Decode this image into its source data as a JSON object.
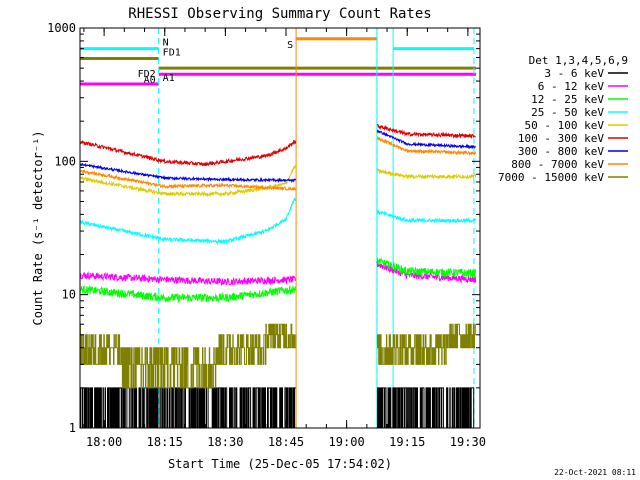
{
  "chart_data": {
    "type": "line",
    "title": "RHESSI Observing Summary Count Rates",
    "xlabel": "Start Time (25-Dec-05 17:54:02)",
    "ylabel": "Count Rate (s⁻¹ detector⁻¹)",
    "yscale": "log",
    "ylim": [
      1,
      1000
    ],
    "y_ticks": [
      {
        "v": 1,
        "label": "1"
      },
      {
        "v": 10,
        "label": "10"
      },
      {
        "v": 100,
        "label": "100"
      },
      {
        "v": 1000,
        "label": "1000"
      }
    ],
    "xlim": [
      "17:54:02",
      "19:33:00"
    ],
    "x_ticks": [
      {
        "t": "18:00",
        "label": "18:00"
      },
      {
        "t": "18:15",
        "label": "18:15"
      },
      {
        "t": "18:30",
        "label": "18:30"
      },
      {
        "t": "18:45",
        "label": "18:45"
      },
      {
        "t": "19:00",
        "label": "19:00"
      },
      {
        "t": "19:15",
        "label": "19:15"
      },
      {
        "t": "19:30",
        "label": "19:30"
      }
    ],
    "gaps": [
      {
        "start": "18:47:30",
        "end": "19:07:30"
      }
    ],
    "legend": {
      "position": "right",
      "header": "Det 1,3,4,5,6,9",
      "entries": [
        {
          "label": "3 - 6 keV",
          "color": "#000000"
        },
        {
          "label": "6 - 12 keV",
          "color": "#ff00ff"
        },
        {
          "label": "12 - 25 keV",
          "color": "#00ff00"
        },
        {
          "label": "25 - 50 keV",
          "color": "#00ffff"
        },
        {
          "label": "50 - 100 keV",
          "color": "#ddcc00"
        },
        {
          "label": "100 - 300 keV",
          "color": "#dd0000"
        },
        {
          "label": "300 - 800 keV",
          "color": "#0000ee"
        },
        {
          "label": "800 - 7000 keV",
          "color": "#ff8800"
        },
        {
          "label": "7000 - 15000 keV",
          "color": "#808000"
        }
      ]
    },
    "series": [
      {
        "name": "3 - 6 keV",
        "color": "#000000",
        "noise": "binary",
        "points": [
          [
            "17:54:02",
            1.5
          ],
          [
            "18:40:00",
            1.5
          ],
          [
            "18:47:00",
            1.5
          ],
          [
            "19:07:30",
            1.5
          ],
          [
            "19:32:00",
            1.5
          ]
        ]
      },
      {
        "name": "6 - 12 keV",
        "color": "#ff00ff",
        "noise": 0.06,
        "points": [
          [
            "17:54:02",
            14
          ],
          [
            "18:15:00",
            13
          ],
          [
            "18:30:00",
            12.5
          ],
          [
            "18:47:00",
            13
          ],
          [
            "19:07:30",
            17
          ],
          [
            "19:15:00",
            14
          ],
          [
            "19:32:00",
            13
          ]
        ]
      },
      {
        "name": "12 - 25 keV",
        "color": "#00ff00",
        "noise": 0.07,
        "points": [
          [
            "17:54:02",
            11
          ],
          [
            "18:15:00",
            9.5
          ],
          [
            "18:30:00",
            9.5
          ],
          [
            "18:47:00",
            11
          ],
          [
            "19:07:30",
            18
          ],
          [
            "19:15:00",
            15
          ],
          [
            "19:32:00",
            14.5
          ]
        ]
      },
      {
        "name": "25 - 50 keV",
        "color": "#00ffff",
        "noise": 0.03,
        "points": [
          [
            "17:54:02",
            35
          ],
          [
            "18:15:00",
            26
          ],
          [
            "18:30:00",
            25
          ],
          [
            "18:40:00",
            30
          ],
          [
            "18:45:00",
            37
          ],
          [
            "18:47:00",
            52
          ],
          [
            "19:07:30",
            42
          ],
          [
            "19:15:00",
            36
          ],
          [
            "19:32:00",
            36
          ]
        ]
      },
      {
        "name": "50 - 100 keV",
        "color": "#ddcc00",
        "noise": 0.03,
        "points": [
          [
            "17:54:02",
            75
          ],
          [
            "18:15:00",
            57
          ],
          [
            "18:30:00",
            57
          ],
          [
            "18:40:00",
            63
          ],
          [
            "18:45:00",
            68
          ],
          [
            "18:47:00",
            90
          ],
          [
            "19:07:30",
            85
          ],
          [
            "19:15:00",
            77
          ],
          [
            "19:32:00",
            77
          ]
        ]
      },
      {
        "name": "100 - 300 keV",
        "color": "#dd0000",
        "noise": 0.03,
        "points": [
          [
            "17:54:02",
            140
          ],
          [
            "18:15:00",
            100
          ],
          [
            "18:25:00",
            95
          ],
          [
            "18:40:00",
            110
          ],
          [
            "18:45:00",
            125
          ],
          [
            "18:47:00",
            140
          ],
          [
            "19:07:30",
            185
          ],
          [
            "19:15:00",
            160
          ],
          [
            "19:32:00",
            155
          ]
        ]
      },
      {
        "name": "300 - 800 keV",
        "color": "#0000ee",
        "noise": 0.02,
        "points": [
          [
            "17:54:02",
            95
          ],
          [
            "18:15:00",
            75
          ],
          [
            "18:30:00",
            73
          ],
          [
            "18:47:00",
            72
          ],
          [
            "19:07:30",
            170
          ],
          [
            "19:15:00",
            135
          ],
          [
            "19:32:00",
            128
          ]
        ]
      },
      {
        "name": "800 - 7000 keV",
        "color": "#ff8800",
        "noise": 0.025,
        "points": [
          [
            "17:54:02",
            85
          ],
          [
            "18:15:00",
            65
          ],
          [
            "18:30:00",
            66
          ],
          [
            "18:47:00",
            62
          ],
          [
            "19:07:30",
            150
          ],
          [
            "19:15:00",
            120
          ],
          [
            "19:32:00",
            115
          ]
        ]
      },
      {
        "name": "7000 - 15000 keV",
        "color": "#808000",
        "noise": "step",
        "points": [
          [
            "17:54:02",
            4.5
          ],
          [
            "18:10:00",
            3
          ],
          [
            "18:20:00",
            3
          ],
          [
            "18:40:00",
            4.5
          ],
          [
            "18:47:00",
            4.5
          ],
          [
            "19:07:30",
            3.5
          ],
          [
            "19:32:00",
            5
          ]
        ]
      }
    ],
    "vertical_lines": [
      {
        "t": "17:54:02",
        "color": "#00ffff",
        "style": "solid"
      },
      {
        "t": "18:13:30",
        "color": "#00ffff",
        "style": "dashed"
      },
      {
        "t": "18:47:30",
        "color": "#ff8800",
        "style": "solid"
      },
      {
        "t": "19:07:30",
        "color": "#ff8800",
        "style": "dashed"
      },
      {
        "t": "19:07:30",
        "color": "#00ffff",
        "style": "solid"
      },
      {
        "t": "19:11:30",
        "color": "#00ffff",
        "style": "solid"
      },
      {
        "t": "19:31:30",
        "color": "#00ffff",
        "style": "dashed"
      }
    ],
    "flag_bars": [
      {
        "label": "N",
        "color": "#00ffff",
        "label_side": "right",
        "segments": [
          [
            "17:54:02",
            "18:13:30",
            700
          ],
          [
            "19:11:30",
            "19:31:30",
            700
          ]
        ]
      },
      {
        "label": "FD1",
        "color": "#808000",
        "label_side": "right",
        "segments": [
          [
            "17:54:02",
            "18:13:30",
            590
          ]
        ]
      },
      {
        "label": "FD2",
        "color": "#808000",
        "label_side": "left",
        "segments": [
          [
            "18:13:30",
            "19:32:00",
            500
          ]
        ]
      },
      {
        "label": "A0",
        "color": "#ff00ff",
        "label_side": "left",
        "segments": [
          [
            "18:13:30",
            "19:32:00",
            450
          ]
        ]
      },
      {
        "label": "A1",
        "color": "#ff00ff",
        "label_side": "right",
        "segments": [
          [
            "17:54:02",
            "18:13:30",
            380
          ]
        ]
      },
      {
        "label": "S",
        "color": "#ff8800",
        "label_side": "left",
        "segments": [
          [
            "18:47:30",
            "19:07:30",
            830
          ]
        ]
      }
    ],
    "footer_date": "22-Oct-2021 08:11"
  }
}
